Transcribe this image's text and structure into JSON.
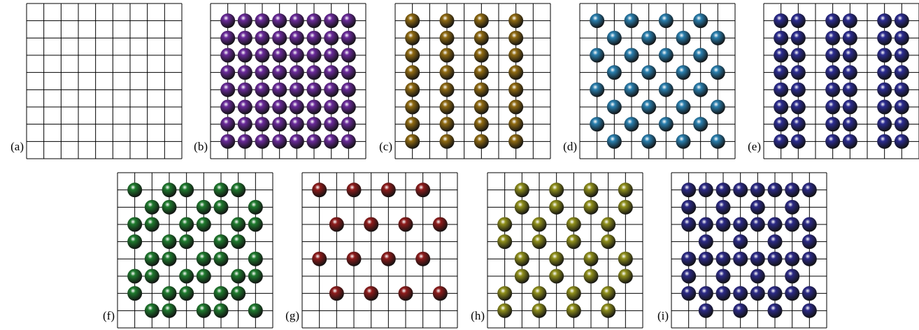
{
  "panels": [
    {
      "label": "(a)"
    },
    {
      "label": "(b)"
    },
    {
      "label": "(c)"
    },
    {
      "label": "(d)"
    },
    {
      "label": "(e)"
    },
    {
      "label": "(f)"
    },
    {
      "label": "(g)"
    },
    {
      "label": "(h)"
    },
    {
      "label": "(i)"
    }
  ]
}
